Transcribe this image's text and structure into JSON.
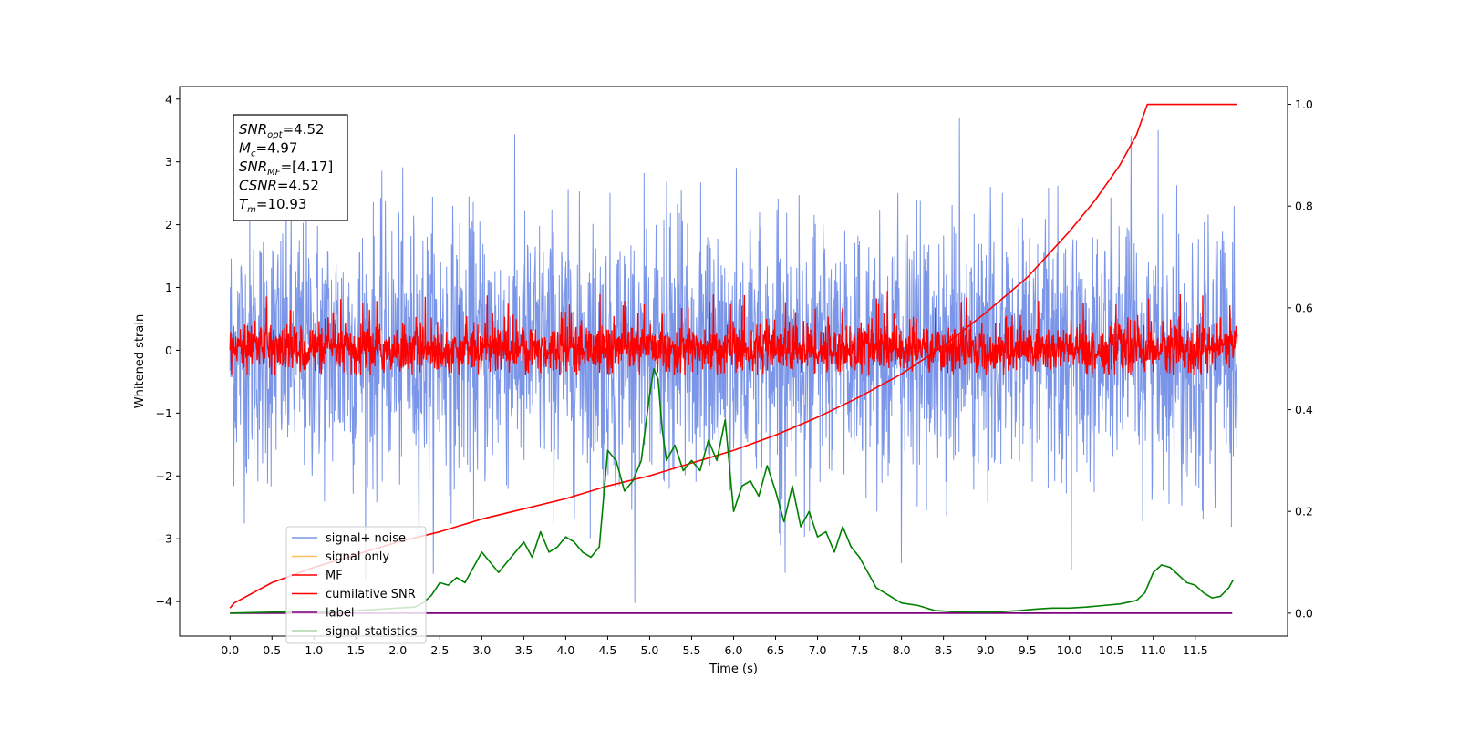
{
  "chart_data": {
    "type": "line",
    "title": "",
    "xlabel": "Time (s)",
    "ylabel": "Whitened strain",
    "xlim": [
      -0.6,
      12.6
    ],
    "ylim": [
      -4.55,
      4.2
    ],
    "y2lim": [
      -0.045,
      1.035
    ],
    "grid": false,
    "legend_position": "lower-left",
    "x_ticks": [
      "0.0",
      "0.5",
      "1.0",
      "1.5",
      "2.0",
      "2.5",
      "3.0",
      "3.5",
      "4.0",
      "4.5",
      "5.0",
      "5.5",
      "6.0",
      "6.5",
      "7.0",
      "7.5",
      "8.0",
      "8.5",
      "9.0",
      "9.5",
      "10.0",
      "10.5",
      "11.0",
      "11.5"
    ],
    "y_ticks": [
      "4",
      "3",
      "2",
      "1",
      "0",
      "−1",
      "−2",
      "−3",
      "−4"
    ],
    "y2_ticks": [
      "1.0",
      "0.8",
      "0.6",
      "0.4",
      "0.2",
      "0.0"
    ],
    "annotation": [
      {
        "base": "SNR",
        "sub": "opt",
        "value": "=4.52"
      },
      {
        "base": "M",
        "sub": "c",
        "value": "=4.97"
      },
      {
        "base": "SNR",
        "sub": "MF",
        "value": "=[4.17]"
      },
      {
        "base": "CSNR",
        "sub": "",
        "value": "=4.52"
      },
      {
        "base": "T",
        "sub": "m",
        "value": "=10.93"
      }
    ],
    "series": [
      {
        "name": "signal+ noise",
        "color": "#7b96e8",
        "axis": "left",
        "noise_range": [
          -4.15,
          3.82
        ],
        "t_range": [
          0,
          12
        ]
      },
      {
        "name": "signal only",
        "color": "#ffbf5f",
        "axis": "left",
        "values_note": "hidden under other traces"
      },
      {
        "name": "MF",
        "color": "#ff0000",
        "axis": "left",
        "noise_range": [
          -0.4,
          1.0
        ],
        "t_range": [
          0,
          12
        ]
      },
      {
        "name": "cumilative SNR",
        "color": "#ff0000",
        "axis": "right",
        "x": [
          0,
          0.05,
          0.5,
          1.0,
          1.5,
          2.0,
          2.5,
          3.0,
          3.5,
          4.0,
          4.5,
          5.0,
          5.5,
          6.0,
          6.5,
          7.0,
          7.5,
          8.0,
          8.5,
          9.0,
          9.5,
          10.0,
          10.3,
          10.6,
          10.8,
          10.93,
          11.0,
          11.5,
          12.0
        ],
        "values": [
          0.01,
          0.02,
          0.06,
          0.09,
          0.115,
          0.14,
          0.16,
          0.185,
          0.205,
          0.225,
          0.25,
          0.27,
          0.295,
          0.32,
          0.35,
          0.385,
          0.425,
          0.47,
          0.525,
          0.59,
          0.66,
          0.75,
          0.81,
          0.88,
          0.94,
          1.0,
          1.0,
          1.0,
          1.0
        ]
      },
      {
        "name": "label",
        "color": "#800080",
        "axis": "right",
        "x": [
          0,
          11.94
        ],
        "values": [
          0,
          0
        ]
      },
      {
        "name": "signal statistics",
        "color": "#008000",
        "axis": "right",
        "x": [
          0,
          0.5,
          1.0,
          1.5,
          2.0,
          2.2,
          2.3,
          2.4,
          2.5,
          2.6,
          2.7,
          2.8,
          2.9,
          3.0,
          3.1,
          3.2,
          3.3,
          3.4,
          3.5,
          3.6,
          3.7,
          3.8,
          3.9,
          4.0,
          4.1,
          4.2,
          4.3,
          4.4,
          4.5,
          4.6,
          4.7,
          4.8,
          4.9,
          5.0,
          5.05,
          5.1,
          5.15,
          5.2,
          5.3,
          5.4,
          5.5,
          5.6,
          5.7,
          5.8,
          5.9,
          6.0,
          6.1,
          6.2,
          6.3,
          6.4,
          6.5,
          6.6,
          6.7,
          6.8,
          6.9,
          7.0,
          7.1,
          7.2,
          7.3,
          7.4,
          7.5,
          7.6,
          7.7,
          7.8,
          7.9,
          8.0,
          8.2,
          8.4,
          8.6,
          9.0,
          9.2,
          9.4,
          9.6,
          9.8,
          10.0,
          10.2,
          10.4,
          10.6,
          10.8,
          10.9,
          11.0,
          11.1,
          11.2,
          11.3,
          11.4,
          11.5,
          11.6,
          11.7,
          11.8,
          11.9,
          11.95
        ],
        "values": [
          0.0,
          0.002,
          0.002,
          0.005,
          0.01,
          0.012,
          0.02,
          0.035,
          0.06,
          0.055,
          0.07,
          0.06,
          0.09,
          0.12,
          0.1,
          0.08,
          0.1,
          0.12,
          0.14,
          0.11,
          0.16,
          0.12,
          0.13,
          0.15,
          0.14,
          0.12,
          0.11,
          0.13,
          0.32,
          0.3,
          0.24,
          0.26,
          0.3,
          0.43,
          0.48,
          0.46,
          0.36,
          0.3,
          0.33,
          0.28,
          0.3,
          0.28,
          0.34,
          0.3,
          0.38,
          0.2,
          0.25,
          0.26,
          0.23,
          0.29,
          0.24,
          0.18,
          0.25,
          0.17,
          0.2,
          0.15,
          0.16,
          0.12,
          0.17,
          0.13,
          0.11,
          0.08,
          0.05,
          0.04,
          0.03,
          0.02,
          0.015,
          0.005,
          0.003,
          0.002,
          0.003,
          0.005,
          0.008,
          0.01,
          0.01,
          0.012,
          0.015,
          0.018,
          0.025,
          0.04,
          0.08,
          0.095,
          0.09,
          0.075,
          0.06,
          0.055,
          0.04,
          0.03,
          0.033,
          0.05,
          0.065
        ]
      }
    ]
  }
}
